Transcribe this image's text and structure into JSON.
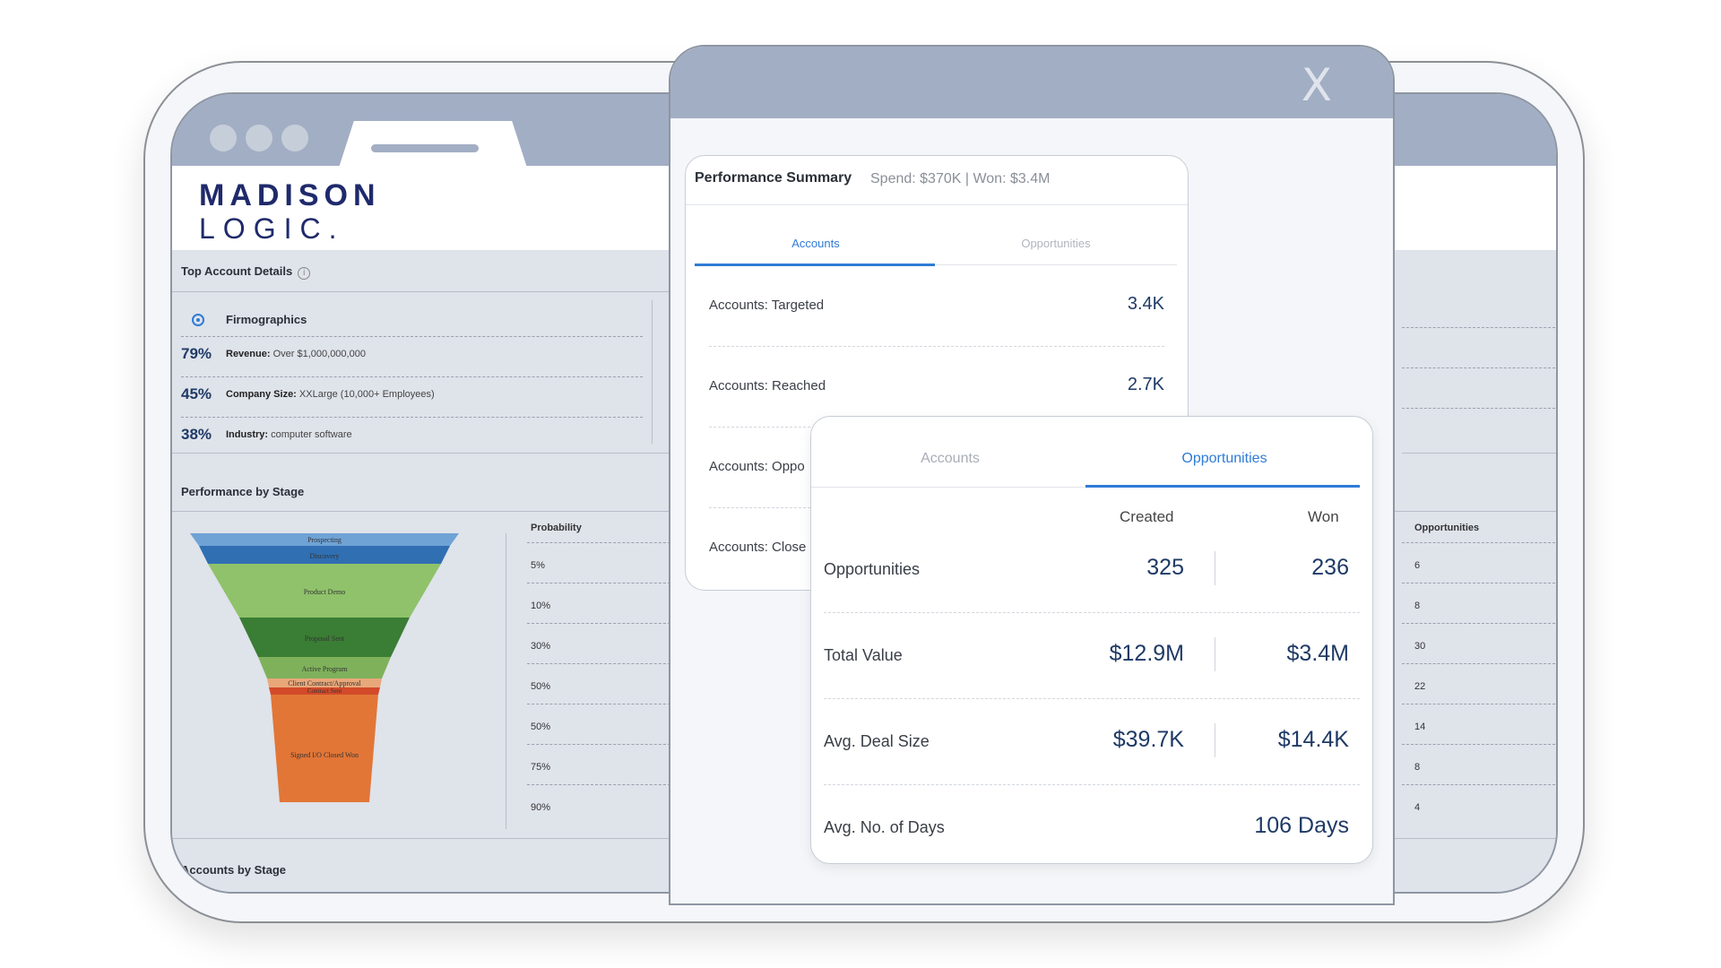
{
  "brand": {
    "line1": "MADISON",
    "line2": "LOGIC."
  },
  "top_account": {
    "title": "Top Account Details",
    "info_glyph": "i",
    "firmographics_label": "Firmographics",
    "rows": [
      {
        "pct": "79%",
        "key": "Revenue:",
        "value": "Over $1,000,000,000"
      },
      {
        "pct": "45%",
        "key": "Company Size:",
        "value": "XXLarge (10,000+ Employees)"
      },
      {
        "pct": "38%",
        "key": "Industry:",
        "value": "computer software"
      }
    ]
  },
  "performance_by_stage": {
    "title": "Performance by Stage",
    "probability_header": "Probability",
    "probabilities": [
      "5%",
      "10%",
      "30%",
      "50%",
      "50%",
      "75%",
      "90%"
    ],
    "opportunities_header": "Opportunities",
    "opportunities": [
      "6",
      "8",
      "30",
      "22",
      "14",
      "8",
      "4"
    ],
    "funnel": [
      {
        "label": "Prospecting",
        "color": "#6fa3d6"
      },
      {
        "label": "Discovery",
        "color": "#2f6fb2"
      },
      {
        "label": "Product Demo",
        "color": "#8fc26a"
      },
      {
        "label": "Proposal Sent",
        "color": "#3a7d34"
      },
      {
        "label": "Active Program",
        "color": "#7fb15b"
      },
      {
        "label": "Client Contract/Approval",
        "color": "#e9a87a"
      },
      {
        "label": "Contract Sent",
        "color": "#d24a2a"
      },
      {
        "label": "Signed I/O Closed Won",
        "color": "#e27637"
      }
    ]
  },
  "accounts_by_stage": {
    "title": "Accounts by Stage"
  },
  "modal": {
    "close_glyph": "X"
  },
  "summary": {
    "title": "Performance Summary",
    "subtitle": "Spend: $370K | Won: $3.4M",
    "tabs": [
      "Accounts",
      "Opportunities"
    ],
    "rows": [
      {
        "label": "Accounts: Targeted",
        "value": "3.4K"
      },
      {
        "label": "Accounts: Reached",
        "value": "2.7K"
      },
      {
        "label": "Accounts: Oppo",
        "value": ""
      },
      {
        "label": "Accounts: Close",
        "value": ""
      }
    ]
  },
  "opportunities_card": {
    "tabs": [
      "Accounts",
      "Opportunities"
    ],
    "col_created": "Created",
    "col_won": "Won",
    "rows": [
      {
        "label": "Opportunities",
        "created": "325",
        "won": "236"
      },
      {
        "label": "Total Value",
        "created": "$12.9M",
        "won": "$3.4M"
      },
      {
        "label": "Avg. Deal Size",
        "created": "$39.7K",
        "won": "$14.4K"
      },
      {
        "label": "Avg. No. of Days",
        "created": "",
        "won": "106 Days"
      }
    ]
  },
  "colors": {
    "accent_blue": "#2f7bd6",
    "navy": "#1f2a6b",
    "chrome": "#a2aec4"
  }
}
